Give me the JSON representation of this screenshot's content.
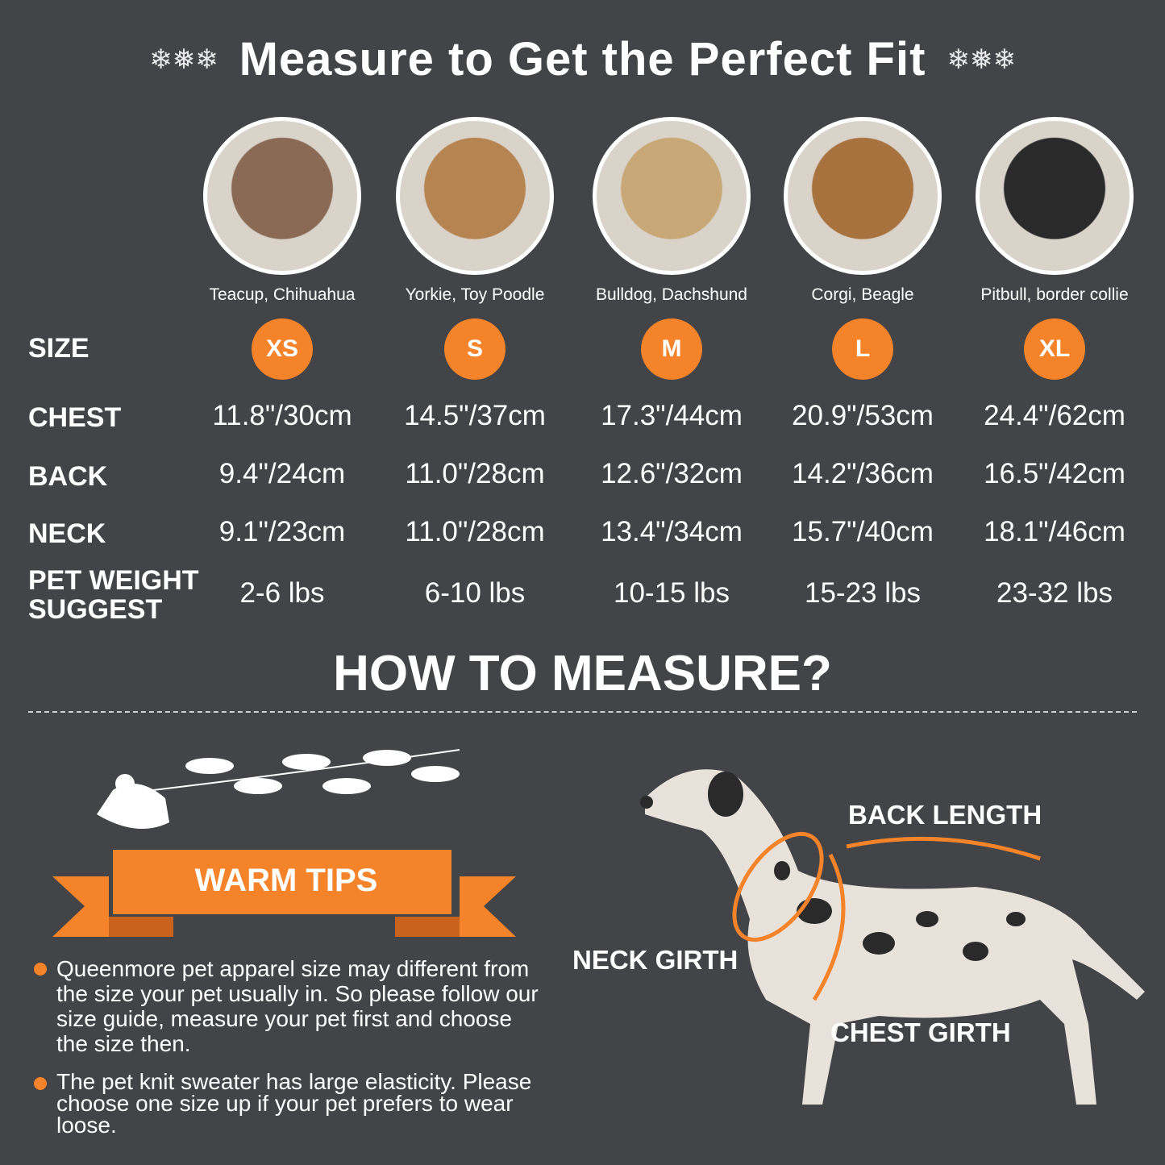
{
  "title": "Measure to Get the Perfect Fit",
  "decoration_icon": "snowflake-icon",
  "accent_color": "#f5832a",
  "background_color": "#434447",
  "columns": [
    {
      "breeds": "Teacup, Chihuahua",
      "size": "XS",
      "chest": "11.8\"/30cm",
      "back": "9.4\"/24cm",
      "neck": "9.1\"/23cm",
      "weight": "2-6 lbs",
      "photo_color": "#8a6a55"
    },
    {
      "breeds": "Yorkie, Toy Poodle",
      "size": "S",
      "chest": "14.5\"/37cm",
      "back": "11.0\"/28cm",
      "neck": "11.0\"/28cm",
      "weight": "6-10 lbs",
      "photo_color": "#b58450"
    },
    {
      "breeds": "Bulldog, Dachshund",
      "size": "M",
      "chest": "17.3\"/44cm",
      "back": "12.6\"/32cm",
      "neck": "13.4\"/34cm",
      "weight": "10-15 lbs",
      "photo_color": "#c9a878"
    },
    {
      "breeds": "Corgi, Beagle",
      "size": "L",
      "chest": "20.9\"/53cm",
      "back": "14.2\"/36cm",
      "neck": "15.7\"/40cm",
      "weight": "15-23 lbs",
      "photo_color": "#a8723f"
    },
    {
      "breeds": "Pitbull, border collie",
      "size": "XL",
      "chest": "24.4\"/62cm",
      "back": "16.5\"/42cm",
      "neck": "18.1\"/46cm",
      "weight": "23-32 lbs",
      "photo_color": "#2a2a2a"
    }
  ],
  "row_labels": {
    "size": "SIZE",
    "chest": "CHEST",
    "back": "BACK",
    "neck": "NECK",
    "weight_1": "PET WEIGHT",
    "weight_2": "SUGGEST"
  },
  "how_title": "HOW TO MEASURE?",
  "warm_tips": {
    "title": "WARM TIPS",
    "items": [
      "Queenmore pet apparel size may different from the size your pet usually in. So please follow our size guide, measure your pet first and choose the size then.",
      "The pet knit sweater has large elasticity. Please choose one size up if your pet prefers to wear loose."
    ]
  },
  "diagram_labels": {
    "back": "BACK LENGTH",
    "neck": "NECK GIRTH",
    "chest": "CHEST GIRTH"
  }
}
